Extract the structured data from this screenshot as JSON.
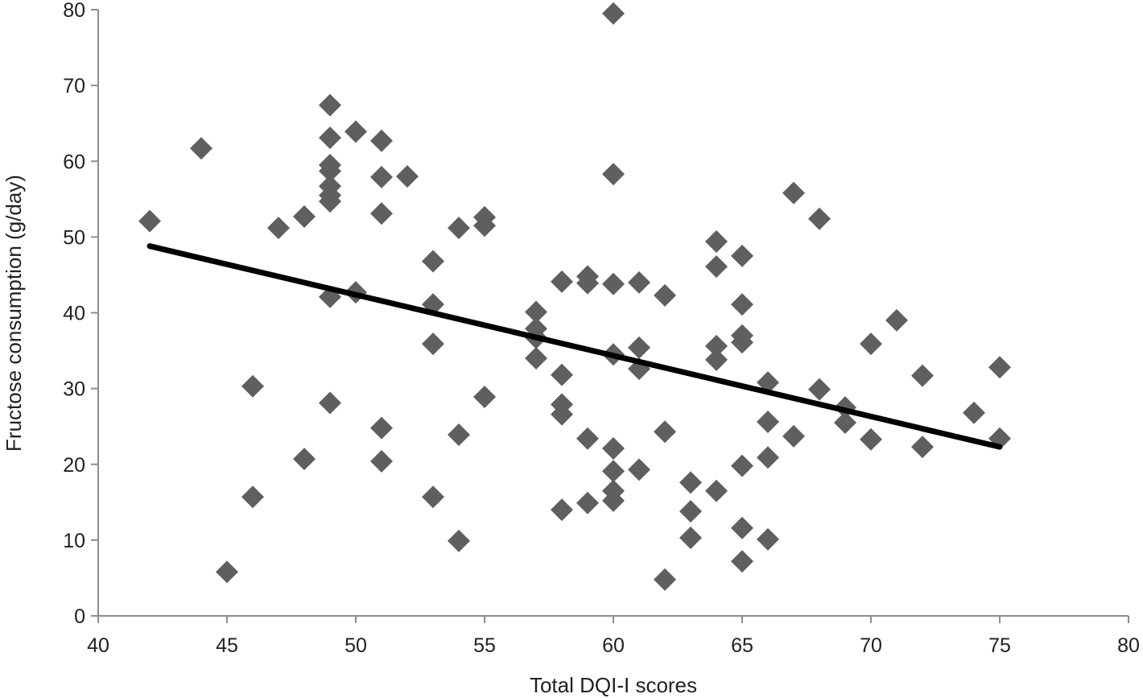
{
  "chart_data": {
    "type": "scatter",
    "title": "",
    "xlabel": "Total DQI-I scores",
    "ylabel": "Fructose consumption (g/day)",
    "xlim": [
      40,
      80
    ],
    "ylim": [
      0,
      80
    ],
    "xticks": [
      40,
      45,
      50,
      55,
      60,
      65,
      70,
      75,
      80
    ],
    "yticks": [
      0,
      10,
      20,
      30,
      40,
      50,
      60,
      70,
      80
    ],
    "grid": false,
    "marker": "diamond",
    "marker_color": "#5f5f5f",
    "trendline": {
      "color": "#000000",
      "x": [
        42,
        75
      ],
      "y": [
        48.8,
        22.3
      ]
    },
    "points": [
      [
        42,
        52.1
      ],
      [
        44,
        61.7
      ],
      [
        45,
        5.8
      ],
      [
        46,
        30.3
      ],
      [
        46,
        15.7
      ],
      [
        47,
        51.2
      ],
      [
        48,
        52.7
      ],
      [
        48,
        20.7
      ],
      [
        49,
        67.4
      ],
      [
        49,
        63.1
      ],
      [
        49,
        59.5
      ],
      [
        49,
        58.7
      ],
      [
        49,
        56.7
      ],
      [
        49,
        55.5
      ],
      [
        49,
        54.7
      ],
      [
        49,
        42.1
      ],
      [
        49,
        28.1
      ],
      [
        50,
        63.9
      ],
      [
        50,
        42.7
      ],
      [
        51,
        62.7
      ],
      [
        51,
        57.9
      ],
      [
        51,
        53.1
      ],
      [
        51,
        24.8
      ],
      [
        51,
        20.4
      ],
      [
        52,
        58.0
      ],
      [
        53,
        46.8
      ],
      [
        53,
        41.1
      ],
      [
        53,
        35.9
      ],
      [
        53,
        15.7
      ],
      [
        54,
        51.2
      ],
      [
        54,
        23.9
      ],
      [
        54,
        9.9
      ],
      [
        55,
        52.6
      ],
      [
        55,
        51.5
      ],
      [
        55,
        28.9
      ],
      [
        57,
        40.1
      ],
      [
        57,
        37.9
      ],
      [
        57,
        36.7
      ],
      [
        57,
        34.0
      ],
      [
        58,
        44.1
      ],
      [
        58,
        31.8
      ],
      [
        58,
        27.9
      ],
      [
        58,
        26.6
      ],
      [
        58,
        14.0
      ],
      [
        59,
        44.8
      ],
      [
        59,
        43.9
      ],
      [
        59,
        23.4
      ],
      [
        59,
        14.9
      ],
      [
        60,
        79.5
      ],
      [
        60,
        58.3
      ],
      [
        60,
        43.8
      ],
      [
        60,
        34.5
      ],
      [
        60,
        22.1
      ],
      [
        60,
        19.1
      ],
      [
        60,
        16.5
      ],
      [
        60,
        15.2
      ],
      [
        61,
        44.0
      ],
      [
        61,
        35.4
      ],
      [
        61,
        32.6
      ],
      [
        61,
        19.3
      ],
      [
        62,
        42.3
      ],
      [
        62,
        24.3
      ],
      [
        62,
        4.8
      ],
      [
        63,
        17.6
      ],
      [
        63,
        13.8
      ],
      [
        63,
        10.3
      ],
      [
        64,
        49.4
      ],
      [
        64,
        46.1
      ],
      [
        64,
        35.6
      ],
      [
        64,
        33.8
      ],
      [
        64,
        16.5
      ],
      [
        65,
        47.5
      ],
      [
        65,
        41.1
      ],
      [
        65,
        37.0
      ],
      [
        65,
        36.1
      ],
      [
        65,
        19.8
      ],
      [
        65,
        11.6
      ],
      [
        65,
        7.2
      ],
      [
        66,
        30.8
      ],
      [
        66,
        25.6
      ],
      [
        66,
        20.9
      ],
      [
        66,
        10.1
      ],
      [
        67,
        55.8
      ],
      [
        67,
        23.7
      ],
      [
        68,
        52.4
      ],
      [
        68,
        29.9
      ],
      [
        69,
        27.5
      ],
      [
        69,
        25.5
      ],
      [
        70,
        35.9
      ],
      [
        70,
        23.3
      ],
      [
        71,
        39.0
      ],
      [
        72,
        31.7
      ],
      [
        72,
        22.3
      ],
      [
        74,
        26.8
      ],
      [
        75,
        32.8
      ],
      [
        75,
        23.4
      ]
    ]
  }
}
